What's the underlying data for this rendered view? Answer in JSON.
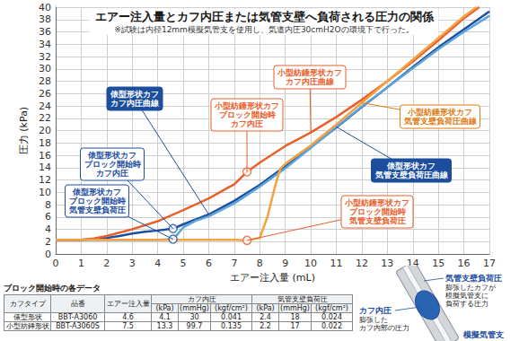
{
  "chart_data": {
    "type": "line",
    "title": "エアー注入量とカフ内圧または気管支壁へ負荷される圧力の関係",
    "subtitle": "※試験は内径12mm模擬気管支を使用し、気道内圧30cmH2Oの環境下で行った。",
    "x_label": "エアー注入量 (mL)",
    "y_label": "圧力 (kPa)",
    "xlim": [
      0,
      17
    ],
    "xticks": [
      0,
      1,
      2,
      3,
      4,
      5,
      6,
      7,
      8,
      9,
      10,
      11,
      12,
      13,
      14,
      15,
      16,
      17
    ],
    "ylim": [
      0,
      40
    ],
    "yticks": [
      0,
      2,
      4,
      6,
      8,
      10,
      12,
      14,
      16,
      18,
      20,
      22,
      24,
      26,
      28,
      30,
      32,
      34,
      36,
      38,
      40
    ],
    "grid": true,
    "series": [
      {
        "name": "俵型形状カフ\nカフ内圧曲線",
        "color": "#1d4e9e",
        "x": [
          0,
          1,
          1.5,
          2,
          2.5,
          3,
          3.5,
          4,
          4.6,
          5,
          5.5,
          6,
          7,
          8,
          9,
          10,
          11,
          12,
          13,
          14,
          15,
          16,
          17
        ],
        "values": [
          2.3,
          2.3,
          2.4,
          2.6,
          2.9,
          3.3,
          3.6,
          3.8,
          4.1,
          4.8,
          5.6,
          6.4,
          8.6,
          11.2,
          14.2,
          17.3,
          20.5,
          23.8,
          27,
          30.3,
          33.5,
          36.4,
          39.3
        ]
      },
      {
        "name": "俵型形状カフ\n気管支壁負荷圧曲線",
        "color": "#5aa5dc",
        "x": [
          0,
          1,
          2,
          3,
          4,
          4.6,
          4.8,
          5,
          5.5,
          6,
          7,
          8,
          9,
          10,
          11,
          12,
          13,
          14,
          15,
          16,
          17
        ],
        "values": [
          2.3,
          2.3,
          2.3,
          2.3,
          2.3,
          2.4,
          3.3,
          4.3,
          5.4,
          6.1,
          8.2,
          10.9,
          13.9,
          17.2,
          20.6,
          23.9,
          27,
          30.1,
          33.2,
          36,
          38.6
        ]
      },
      {
        "name": "小型紡錘形状カフ\nカフ内圧曲線",
        "color": "#e8602c",
        "x": [
          0,
          1,
          1.5,
          2,
          3,
          4,
          5,
          6,
          7,
          7.5,
          8,
          9,
          10,
          11,
          12,
          13,
          14,
          15,
          16,
          16.6
        ],
        "values": [
          2.3,
          2.3,
          2.5,
          2.9,
          4,
          5.3,
          7.1,
          9,
          11.3,
          13.3,
          14.8,
          17.5,
          19.7,
          22.2,
          25,
          28,
          31.2,
          34.6,
          38.2,
          40
        ]
      },
      {
        "name": "小型紡錘形状カフ\n気管支壁負荷圧曲線",
        "color": "#f5a142",
        "x": [
          0,
          1,
          2,
          3,
          4,
          5,
          6,
          7,
          7.5,
          8,
          8.3,
          8.6,
          8.8,
          9,
          10,
          11,
          12,
          13,
          14,
          15,
          16,
          16.5
        ],
        "values": [
          2.3,
          2.3,
          2.3,
          2.3,
          2.3,
          2.3,
          2.3,
          2.3,
          2.2,
          2.6,
          6,
          11,
          13.8,
          14.6,
          17.6,
          21,
          24.5,
          28,
          31.5,
          35,
          38.5,
          40
        ]
      }
    ],
    "annotations": [
      {
        "text": "俵型形状カフ\nブロック開始時\nカフ内圧",
        "x": 4.6,
        "y": 4.1,
        "color": "#1d4e9e"
      },
      {
        "text": "俵型形状カフ\nブロック開始時\n気管支壁負荷圧",
        "x": 4.6,
        "y": 2.4,
        "color": "#1d4e9e"
      },
      {
        "text": "小型紡錘形状カフ\nブロック開始時\nカフ内圧",
        "x": 7.5,
        "y": 13.3,
        "color": "#e8602c"
      },
      {
        "text": "小型紡錘形状カフ\nブロック開始時\n気管支壁負荷圧",
        "x": 7.5,
        "y": 2.2,
        "color": "#e8602c"
      }
    ]
  },
  "table": {
    "title": "ブロック開始時の各データ",
    "header": [
      "カフタイプ",
      "品番",
      "エアー注入量",
      "カフ内圧",
      "気管支壁負荷圧"
    ],
    "units": [
      "(kPa)",
      "(mmHg)",
      "(kgf/cm²)",
      "(kPa)",
      "(mmHg)",
      "(kgf/cm²)"
    ],
    "rows": [
      [
        "俵型形状",
        "BBT-A3060",
        4.6,
        4.1,
        30,
        0.041,
        2.4,
        18,
        0.024
      ],
      [
        "小型紡錘形状",
        "BBT-A3060S",
        7.5,
        13.3,
        99.7,
        0.135,
        2.2,
        17,
        0.022
      ]
    ]
  },
  "diagram": {
    "labels": [
      {
        "title": "気管支壁負荷圧",
        "text": "膨張したカフが\n模擬気管支に\n負荷する圧力"
      },
      {
        "title": "カフ内圧",
        "text": "膨張した\nカフ内部の圧力"
      },
      {
        "title": "模擬気管支"
      }
    ]
  }
}
